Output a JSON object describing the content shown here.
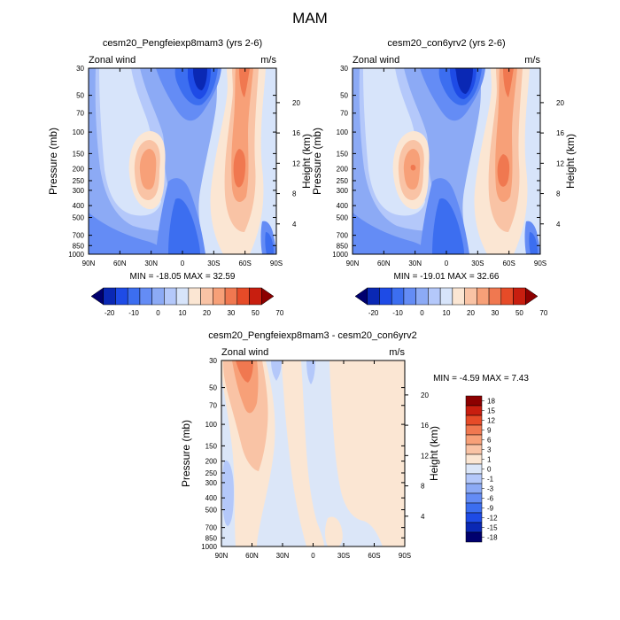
{
  "page_title": "MAM",
  "chart_data": [
    {
      "type": "heatmap",
      "title": "cesm20_Pengfeiexp8mam3 (yrs 2-6)",
      "left_label": "Zonal wind",
      "right_label": "m/s",
      "xlabel": "",
      "ylabel": "Pressure (mb)",
      "y2label": "Height (km)",
      "x_ticks": [
        "90N",
        "60N",
        "30N",
        "0",
        "30S",
        "60S",
        "90S"
      ],
      "y_ticks": [
        30,
        50,
        70,
        100,
        150,
        200,
        250,
        300,
        400,
        500,
        700,
        850,
        1000
      ],
      "y2_ticks": [
        4,
        8,
        12,
        16,
        20
      ],
      "ylim": [
        1000,
        30
      ],
      "y_scale": "log",
      "stats": "MIN = -18.05   MAX =  32.59",
      "colorbar_labels": [
        "-20",
        "-10",
        "0",
        "10",
        "20",
        "30",
        "50",
        "70"
      ]
    },
    {
      "type": "heatmap",
      "title": "cesm20_con6yrv2 (yrs 2-6)",
      "left_label": "Zonal wind",
      "right_label": "m/s",
      "xlabel": "",
      "ylabel": "Pressure (mb)",
      "y2label": "Height (km)",
      "x_ticks": [
        "90N",
        "60N",
        "30N",
        "0",
        "30S",
        "60S",
        "90S"
      ],
      "y_ticks": [
        30,
        50,
        70,
        100,
        150,
        200,
        250,
        300,
        400,
        500,
        700,
        850,
        1000
      ],
      "y2_ticks": [
        20,
        16,
        12,
        8,
        4
      ],
      "ylim": [
        1000,
        30
      ],
      "y_scale": "log",
      "stats": "MIN = -19.01   MAX =  32.66",
      "colorbar_labels": [
        "-20",
        "-10",
        "0",
        "10",
        "20",
        "30",
        "50",
        "70"
      ]
    },
    {
      "type": "heatmap",
      "title": "cesm20_Pengfeiexp8mam3 - cesm20_con6yrv2",
      "left_label": "Zonal wind",
      "right_label": "m/s",
      "xlabel": "",
      "ylabel": "Pressure (mb)",
      "y2label": "Height (km)",
      "x_ticks": [
        "90N",
        "60N",
        "30N",
        "0",
        "30S",
        "60S",
        "90S"
      ],
      "y_ticks": [
        30,
        50,
        70,
        100,
        150,
        200,
        250,
        300,
        400,
        500,
        700,
        850,
        1000
      ],
      "y2_ticks": [
        20,
        16,
        12,
        8,
        4
      ],
      "ylim": [
        1000,
        30
      ],
      "y_scale": "log",
      "stats": "MIN =  -4.59   MAX =   7.43",
      "colorbar_labels": [
        "18",
        "15",
        "12",
        "9",
        "6",
        "3",
        "1",
        "0",
        "-1",
        "-3",
        "-6",
        "-9",
        "-12",
        "-15",
        "-18"
      ]
    }
  ],
  "colors": {
    "full_field_scale": [
      "#00006e",
      "#0a28b4",
      "#1e4be6",
      "#3c6ef0",
      "#648cf5",
      "#8caaf5",
      "#b4c8fa",
      "#d7e4fa",
      "#fbe6d3",
      "#f9c3a5",
      "#f7a078",
      "#f07850",
      "#e64b28",
      "#c81e0f",
      "#8c0000"
    ],
    "diff_scale": [
      "#8c0000",
      "#c81e0f",
      "#e64b28",
      "#f07850",
      "#f7a078",
      "#f9c3a5",
      "#fbe6d3",
      "#dbe6f8",
      "#b4c8fa",
      "#8caaf5",
      "#648cf5",
      "#3c6ef0",
      "#1e4be6",
      "#0a28b4",
      "#00006e"
    ]
  }
}
